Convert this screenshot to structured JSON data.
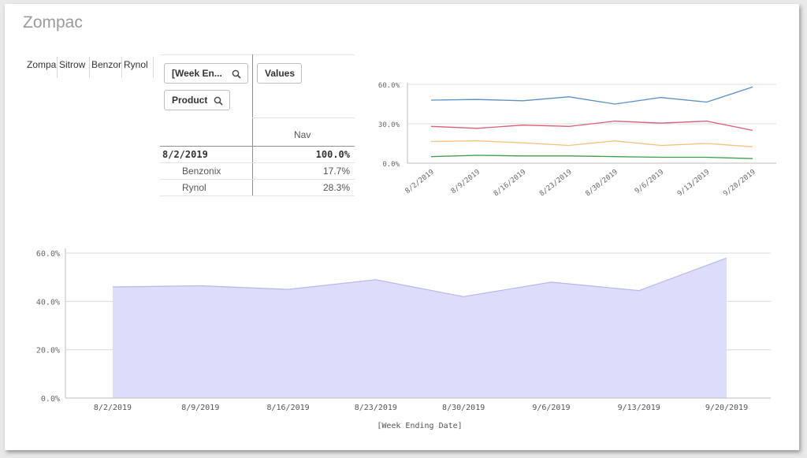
{
  "app": {
    "sheet_title": "Zompac"
  },
  "filter_pane": {
    "tabs": [
      "Zompac",
      "Sitrow",
      "Benzonix",
      "Rynol"
    ]
  },
  "pivot": {
    "dimension_chips": [
      "[Week En...",
      "Product"
    ],
    "values_chip": "Values",
    "measure_header": "Nav",
    "rows": [
      {
        "label": "8/2/2019",
        "value": "100.0%",
        "total": true
      },
      {
        "label": "Benzonix",
        "value": "17.7%",
        "total": false
      },
      {
        "label": "Rynol",
        "value": "28.3%",
        "total": false
      }
    ]
  },
  "chart_data": [
    {
      "type": "line",
      "categories": [
        "8/2/2019",
        "8/9/2019",
        "8/16/2019",
        "8/23/2019",
        "8/30/2019",
        "9/6/2019",
        "9/13/2019",
        "9/20/2019"
      ],
      "ylim": [
        0,
        60
      ],
      "yticks": [
        "0.0%",
        "30.0%",
        "60.0%"
      ],
      "grid": true,
      "legend": "none",
      "series": [
        {
          "color": "#5b8ec4",
          "values": [
            48,
            48.5,
            47.5,
            50.5,
            45,
            50,
            46.5,
            58
          ]
        },
        {
          "color": "#d95f73",
          "values": [
            28,
            26.5,
            29,
            28,
            32,
            30.5,
            32,
            25
          ]
        },
        {
          "color": "#f3c27c",
          "values": [
            16.5,
            17,
            15.5,
            13.5,
            17,
            13.5,
            15,
            12.5
          ]
        },
        {
          "color": "#3c9c4a",
          "values": [
            5,
            6,
            5.5,
            5.5,
            5,
            4.5,
            4.5,
            3.5
          ]
        }
      ]
    },
    {
      "type": "area",
      "categories": [
        "8/2/2019",
        "8/9/2019",
        "8/16/2019",
        "8/23/2019",
        "8/30/2019",
        "9/6/2019",
        "9/13/2019",
        "9/20/2019"
      ],
      "values": [
        46,
        46.5,
        45,
        49,
        42,
        48,
        44.5,
        58
      ],
      "ylim": [
        0,
        62
      ],
      "yticks": [
        "0.0%",
        "20.0%",
        "40.0%",
        "60.0%"
      ],
      "xlabel": "[Week Ending Date]",
      "fill": "#dcdcfb",
      "stroke": "#b7b7ee",
      "grid": true
    }
  ]
}
